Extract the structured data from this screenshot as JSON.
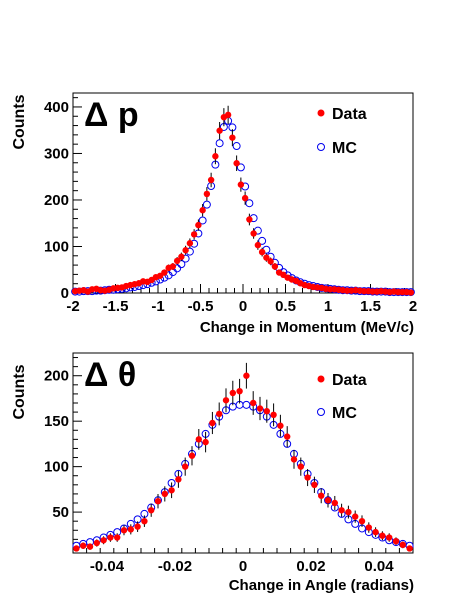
{
  "chart_data": [
    {
      "type": "scatter",
      "panel_label": "Δ p",
      "xlabel": "Change in Momentum (MeV/c)",
      "ylabel": "Counts",
      "xlim": [
        -2,
        2
      ],
      "ylim": [
        0,
        430
      ],
      "xticks": [
        -2,
        -1.5,
        -1,
        -0.5,
        0,
        0.5,
        1,
        1.5,
        2
      ],
      "xtick_labels": [
        "-2",
        "-1.5",
        "-1",
        "-0.5",
        "0",
        "0.5",
        "1",
        "1.5",
        "2"
      ],
      "yticks": [
        0,
        100,
        200,
        300,
        400
      ],
      "ytick_labels": [
        "0",
        "100",
        "200",
        "300",
        "400"
      ],
      "legend_position": "top-right",
      "grid": false,
      "series": [
        {
          "name": "Data",
          "marker": "filled-circle",
          "color": "#ff0000",
          "x": [
            -1.975,
            -1.925,
            -1.875,
            -1.825,
            -1.775,
            -1.725,
            -1.675,
            -1.625,
            -1.575,
            -1.525,
            -1.475,
            -1.425,
            -1.375,
            -1.325,
            -1.275,
            -1.225,
            -1.175,
            -1.125,
            -1.075,
            -1.025,
            -0.975,
            -0.925,
            -0.875,
            -0.825,
            -0.775,
            -0.725,
            -0.675,
            -0.625,
            -0.575,
            -0.525,
            -0.475,
            -0.425,
            -0.375,
            -0.325,
            -0.275,
            -0.225,
            -0.175,
            -0.125,
            -0.075,
            -0.025,
            0.025,
            0.075,
            0.125,
            0.175,
            0.225,
            0.275,
            0.325,
            0.375,
            0.425,
            0.475,
            0.525,
            0.575,
            0.625,
            0.675,
            0.725,
            0.775,
            0.825,
            0.875,
            0.925,
            0.975,
            1.025,
            1.075,
            1.125,
            1.175,
            1.225,
            1.275,
            1.325,
            1.375,
            1.425,
            1.475,
            1.525,
            1.575,
            1.625,
            1.675,
            1.725,
            1.775,
            1.825,
            1.875,
            1.925,
            1.975
          ],
          "y": [
            4,
            5,
            6,
            3,
            8,
            9,
            6,
            5,
            7,
            10,
            11,
            12,
            15,
            17,
            19,
            21,
            25,
            24,
            28,
            34,
            37,
            44,
            54,
            57,
            69,
            78,
            92,
            107,
            126,
            146,
            178,
            213,
            243,
            294,
            349,
            378,
            383,
            334,
            279,
            233,
            204,
            158,
            128,
            103,
            88,
            76,
            68,
            57,
            44,
            39,
            33,
            29,
            26,
            21,
            17,
            15,
            13,
            12,
            11,
            9,
            8,
            8,
            7,
            6,
            5,
            5,
            6,
            5,
            4,
            4,
            3,
            3,
            4,
            3,
            2,
            3,
            2,
            2,
            2,
            1
          ]
        },
        {
          "name": "MC",
          "marker": "open-circle",
          "color": "#0000ee",
          "x": [
            -1.975,
            -1.925,
            -1.875,
            -1.825,
            -1.775,
            -1.725,
            -1.675,
            -1.625,
            -1.575,
            -1.525,
            -1.475,
            -1.425,
            -1.375,
            -1.325,
            -1.275,
            -1.225,
            -1.175,
            -1.125,
            -1.075,
            -1.025,
            -0.975,
            -0.925,
            -0.875,
            -0.825,
            -0.775,
            -0.725,
            -0.675,
            -0.625,
            -0.575,
            -0.525,
            -0.475,
            -0.425,
            -0.375,
            -0.325,
            -0.275,
            -0.225,
            -0.175,
            -0.125,
            -0.075,
            -0.025,
            0.025,
            0.075,
            0.125,
            0.175,
            0.225,
            0.275,
            0.325,
            0.375,
            0.425,
            0.475,
            0.525,
            0.575,
            0.625,
            0.675,
            0.725,
            0.775,
            0.825,
            0.875,
            0.925,
            0.975,
            1.025,
            1.075,
            1.125,
            1.175,
            1.225,
            1.275,
            1.325,
            1.375,
            1.425,
            1.475,
            1.525,
            1.575,
            1.625,
            1.675,
            1.725,
            1.775,
            1.825,
            1.875,
            1.925,
            1.975
          ],
          "y": [
            3,
            3,
            4,
            4,
            4,
            5,
            5,
            6,
            7,
            7,
            8,
            9,
            10,
            12,
            13,
            15,
            17,
            19,
            22,
            25,
            29,
            33,
            38,
            45,
            53,
            62,
            74,
            89,
            106,
            128,
            156,
            190,
            230,
            276,
            322,
            357,
            370,
            356,
            316,
            270,
            229,
            193,
            161,
            134,
            112,
            93,
            78,
            65,
            54,
            45,
            38,
            32,
            27,
            23,
            20,
            17,
            15,
            13,
            11,
            10,
            9,
            8,
            7,
            6,
            6,
            5,
            5,
            4,
            4,
            4,
            3,
            3,
            3,
            3,
            2,
            2,
            2,
            2,
            2,
            2
          ]
        }
      ]
    },
    {
      "type": "scatter",
      "panel_label": "Δ θ",
      "xlabel": "Change in Angle (radians)",
      "ylabel": "Counts",
      "xlim": [
        -0.05,
        0.05
      ],
      "ylim": [
        5,
        225
      ],
      "xticks": [
        -0.04,
        -0.02,
        0,
        0.02,
        0.04
      ],
      "xtick_labels": [
        "-0.04",
        "-0.02",
        "0",
        "0.02",
        "0.04"
      ],
      "yticks": [
        50,
        100,
        150,
        200
      ],
      "ytick_labels": [
        "50",
        "100",
        "150",
        "200"
      ],
      "legend_position": "top-right",
      "grid": false,
      "series": [
        {
          "name": "Data",
          "marker": "filled-circle",
          "color": "#ff0000",
          "x": [
            -0.049,
            -0.047,
            -0.045,
            -0.043,
            -0.041,
            -0.039,
            -0.037,
            -0.035,
            -0.033,
            -0.031,
            -0.029,
            -0.027,
            -0.025,
            -0.023,
            -0.021,
            -0.019,
            -0.017,
            -0.015,
            -0.013,
            -0.011,
            -0.009,
            -0.007,
            -0.005,
            -0.003,
            -0.001,
            0.001,
            0.003,
            0.005,
            0.007,
            0.009,
            0.011,
            0.013,
            0.015,
            0.017,
            0.019,
            0.021,
            0.023,
            0.025,
            0.027,
            0.029,
            0.031,
            0.033,
            0.035,
            0.037,
            0.039,
            0.041,
            0.043,
            0.045,
            0.047,
            0.049
          ],
          "y": [
            10,
            13,
            12,
            16,
            19,
            22,
            22,
            30,
            31,
            34,
            40,
            52,
            62,
            70,
            74,
            86,
            100,
            112,
            130,
            127,
            148,
            158,
            173,
            181,
            183,
            200,
            170,
            164,
            161,
            157,
            145,
            133,
            108,
            100,
            88,
            80,
            68,
            63,
            60,
            52,
            50,
            45,
            40,
            33,
            28,
            24,
            22,
            18,
            14,
            10
          ]
        },
        {
          "name": "MC",
          "marker": "open-circle",
          "color": "#0000ee",
          "x": [
            -0.049,
            -0.047,
            -0.045,
            -0.043,
            -0.041,
            -0.039,
            -0.037,
            -0.035,
            -0.033,
            -0.031,
            -0.029,
            -0.027,
            -0.025,
            -0.023,
            -0.021,
            -0.019,
            -0.017,
            -0.015,
            -0.013,
            -0.011,
            -0.009,
            -0.007,
            -0.005,
            -0.003,
            -0.001,
            0.001,
            0.003,
            0.005,
            0.007,
            0.009,
            0.011,
            0.013,
            0.015,
            0.017,
            0.019,
            0.021,
            0.023,
            0.025,
            0.027,
            0.029,
            0.031,
            0.033,
            0.035,
            0.037,
            0.039,
            0.041,
            0.043,
            0.045,
            0.047,
            0.049
          ],
          "y": [
            13,
            15,
            17,
            19,
            22,
            25,
            28,
            32,
            37,
            42,
            48,
            55,
            63,
            72,
            82,
            92,
            103,
            114,
            125,
            136,
            146,
            155,
            162,
            166,
            168,
            168,
            166,
            162,
            155,
            146,
            136,
            125,
            114,
            103,
            92,
            82,
            72,
            63,
            55,
            48,
            42,
            37,
            32,
            28,
            25,
            22,
            19,
            17,
            15,
            13
          ]
        }
      ]
    }
  ]
}
